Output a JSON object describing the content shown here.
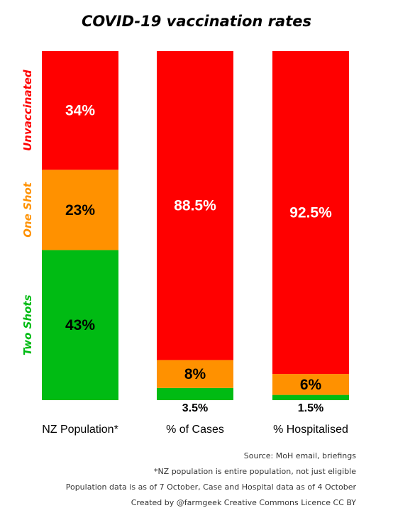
{
  "chart_data": {
    "type": "bar",
    "stacked": true,
    "title": "COVID-19 vaccination rates",
    "categories": [
      "NZ Population*",
      "% of Cases",
      "% Hospitalised"
    ],
    "series": [
      {
        "name": "Unvaccinated",
        "color": "#ff0000",
        "values": [
          34,
          88.5,
          92.5
        ],
        "labels": [
          "34%",
          "88.5%",
          "92.5%"
        ]
      },
      {
        "name": "One Shot",
        "color": "#ff9100",
        "values": [
          23,
          8,
          6
        ],
        "labels": [
          "23%",
          "8%",
          "6%"
        ]
      },
      {
        "name": "Two Shots",
        "color": "#00bb13",
        "values": [
          43,
          3.5,
          1.5
        ],
        "labels": [
          "43%",
          "3.5%",
          "1.5%"
        ]
      }
    ],
    "ylim": [
      0,
      100
    ],
    "legend": "left, vertical, colored text"
  },
  "footer": {
    "source": "Source: MoH email, briefings",
    "note": "*NZ population is entire population, not just eligible",
    "dates": "Population data is as of 7 October, Case and  Hospital data as of 4 October",
    "credit": "Created by  @farmgeek Creative Commons Licence CC BY"
  }
}
